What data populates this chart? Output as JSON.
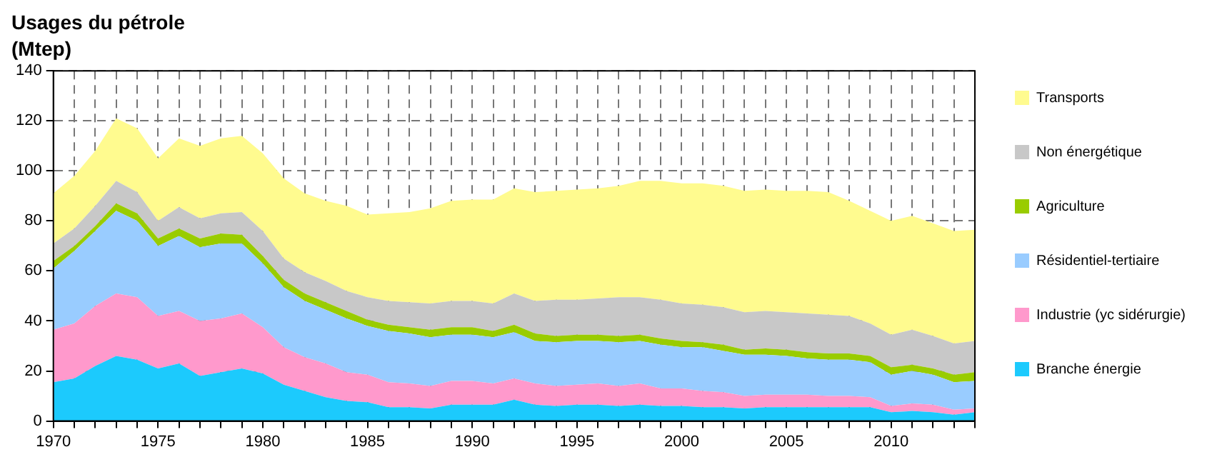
{
  "chart_data": {
    "type": "area",
    "title": "Usages du pétrole",
    "subtitle": "(Mtep)",
    "stacked": true,
    "grid": true,
    "legend": "right",
    "x": [
      1970,
      1971,
      1972,
      1973,
      1974,
      1975,
      1976,
      1977,
      1978,
      1979,
      1980,
      1981,
      1982,
      1983,
      1984,
      1985,
      1986,
      1987,
      1988,
      1989,
      1990,
      1991,
      1992,
      1993,
      1994,
      1995,
      1996,
      1997,
      1998,
      1999,
      2000,
      2001,
      2002,
      2003,
      2004,
      2005,
      2006,
      2007,
      2008,
      2009,
      2010,
      2011,
      2012,
      2013,
      2014
    ],
    "xlim": [
      1970,
      2014
    ],
    "xticks": [
      1970,
      {
        "value": 1971,
        "label": null
      },
      {
        "value": 1972,
        "label": null
      },
      {
        "value": 1973,
        "label": null
      },
      {
        "value": 1974,
        "label": null
      },
      1975,
      {
        "value": 1976,
        "label": null
      },
      {
        "value": 1977,
        "label": null
      },
      {
        "value": 1978,
        "label": null
      },
      {
        "value": 1979,
        "label": null
      },
      1980,
      {
        "value": 1981,
        "label": null
      },
      {
        "value": 1982,
        "label": null
      },
      {
        "value": 1983,
        "label": null
      },
      {
        "value": 1984,
        "label": null
      },
      1985,
      {
        "value": 1986,
        "label": null
      },
      {
        "value": 1987,
        "label": null
      },
      {
        "value": 1988,
        "label": null
      },
      {
        "value": 1989,
        "label": null
      },
      1990,
      {
        "value": 1991,
        "label": null
      },
      {
        "value": 1992,
        "label": null
      },
      {
        "value": 1993,
        "label": null
      },
      {
        "value": 1994,
        "label": null
      },
      1995,
      {
        "value": 1996,
        "label": null
      },
      {
        "value": 1997,
        "label": null
      },
      {
        "value": 1998,
        "label": null
      },
      {
        "value": 1999,
        "label": null
      },
      2000,
      {
        "value": 2001,
        "label": null
      },
      {
        "value": 2002,
        "label": null
      },
      {
        "value": 2003,
        "label": null
      },
      {
        "value": 2004,
        "label": null
      },
      2005,
      {
        "value": 2006,
        "label": null
      },
      {
        "value": 2007,
        "label": null
      },
      {
        "value": 2008,
        "label": null
      },
      {
        "value": 2009,
        "label": null
      },
      2010,
      {
        "value": 2011,
        "label": null
      },
      {
        "value": 2012,
        "label": null
      },
      {
        "value": 2013,
        "label": null
      },
      {
        "value": 2014,
        "label": null
      }
    ],
    "ylim": [
      0,
      140
    ],
    "yticks": [
      0,
      20,
      40,
      60,
      80,
      100,
      120,
      140
    ],
    "series": [
      {
        "name": "Branche énergie",
        "color": "#1ccafd",
        "values": [
          15.5,
          17,
          22,
          26,
          24.5,
          21,
          23,
          18,
          19.5,
          21,
          19,
          14.5,
          12,
          9.5,
          8,
          7.5,
          5.5,
          5.5,
          5,
          6.5,
          6.5,
          6.5,
          8.5,
          6.5,
          6,
          6.5,
          6.5,
          6,
          6.5,
          6,
          6,
          5.5,
          5.5,
          5,
          5.5,
          5.5,
          5.5,
          5.5,
          5.5,
          5.5,
          3.5,
          4,
          3.5,
          2.5,
          3.5
        ]
      },
      {
        "name": "Industrie (yc sidérurgie)",
        "color": "#ff99cc",
        "values": [
          21,
          22,
          24,
          25,
          25,
          21,
          21,
          22,
          21.5,
          22,
          18.5,
          15,
          13.5,
          13.5,
          11.5,
          11,
          10,
          9.5,
          9,
          9.5,
          9.5,
          8.5,
          8.5,
          8.5,
          8,
          8,
          8.5,
          8,
          8.5,
          7,
          7,
          6.5,
          6,
          5,
          5,
          5,
          5,
          4.5,
          4.5,
          4,
          2.5,
          3,
          3,
          2,
          1.5
        ]
      },
      {
        "name": "Résidentiel-tertiaire",
        "color": "#99ccff",
        "values": [
          24.5,
          29,
          30,
          33,
          30.5,
          28,
          30,
          29.5,
          30,
          28,
          25.5,
          24,
          22.5,
          21.5,
          21.5,
          19.5,
          20.5,
          20,
          19.5,
          18.5,
          18.5,
          18.5,
          18.5,
          17,
          17.5,
          17.5,
          17,
          17.5,
          17,
          17.5,
          16.5,
          17.5,
          16.5,
          16.5,
          16,
          15.5,
          14.5,
          14.5,
          14.5,
          14,
          12.5,
          13,
          12,
          11,
          11
        ]
      },
      {
        "name": "Agriculture",
        "color": "#99cc00",
        "values": [
          3,
          2,
          2,
          3,
          3,
          3,
          3,
          3.5,
          4,
          3.5,
          3,
          3,
          3,
          3,
          3,
          2.5,
          2.5,
          2.5,
          3,
          3,
          3,
          2.5,
          3,
          3,
          2.5,
          2.5,
          2.5,
          2.5,
          2.5,
          2.5,
          2.5,
          2,
          2.5,
          2,
          2.5,
          2.5,
          2.5,
          2.5,
          2.5,
          2.5,
          3,
          2.5,
          2.5,
          3,
          3.5
        ]
      },
      {
        "name": "Non énergétique",
        "color": "#c8c8c8",
        "values": [
          7,
          7,
          8,
          9,
          8.5,
          7,
          8.5,
          8,
          8,
          9,
          10,
          8.5,
          8.5,
          8.5,
          8,
          9,
          9.5,
          10,
          10.5,
          10.5,
          10.5,
          11,
          12.5,
          13,
          14.5,
          14,
          14.5,
          15.5,
          15,
          15.5,
          15,
          15,
          15,
          15,
          15,
          15,
          15.5,
          15.5,
          15,
          13,
          13,
          14,
          13,
          12.5,
          12.5
        ]
      },
      {
        "name": "Transports",
        "color": "#fffb8f",
        "values": [
          20,
          21,
          22,
          25,
          25.5,
          25,
          27.5,
          29,
          30,
          30.5,
          31,
          32,
          31.5,
          32,
          34,
          33,
          35,
          36,
          38,
          40,
          40.5,
          41.5,
          42,
          43.5,
          43.5,
          44,
          44,
          44.5,
          46.5,
          47.5,
          48,
          48.5,
          48.5,
          48.5,
          48.5,
          48.5,
          49,
          49,
          46,
          45,
          45.5,
          45.5,
          45,
          45,
          44.5
        ]
      }
    ]
  }
}
